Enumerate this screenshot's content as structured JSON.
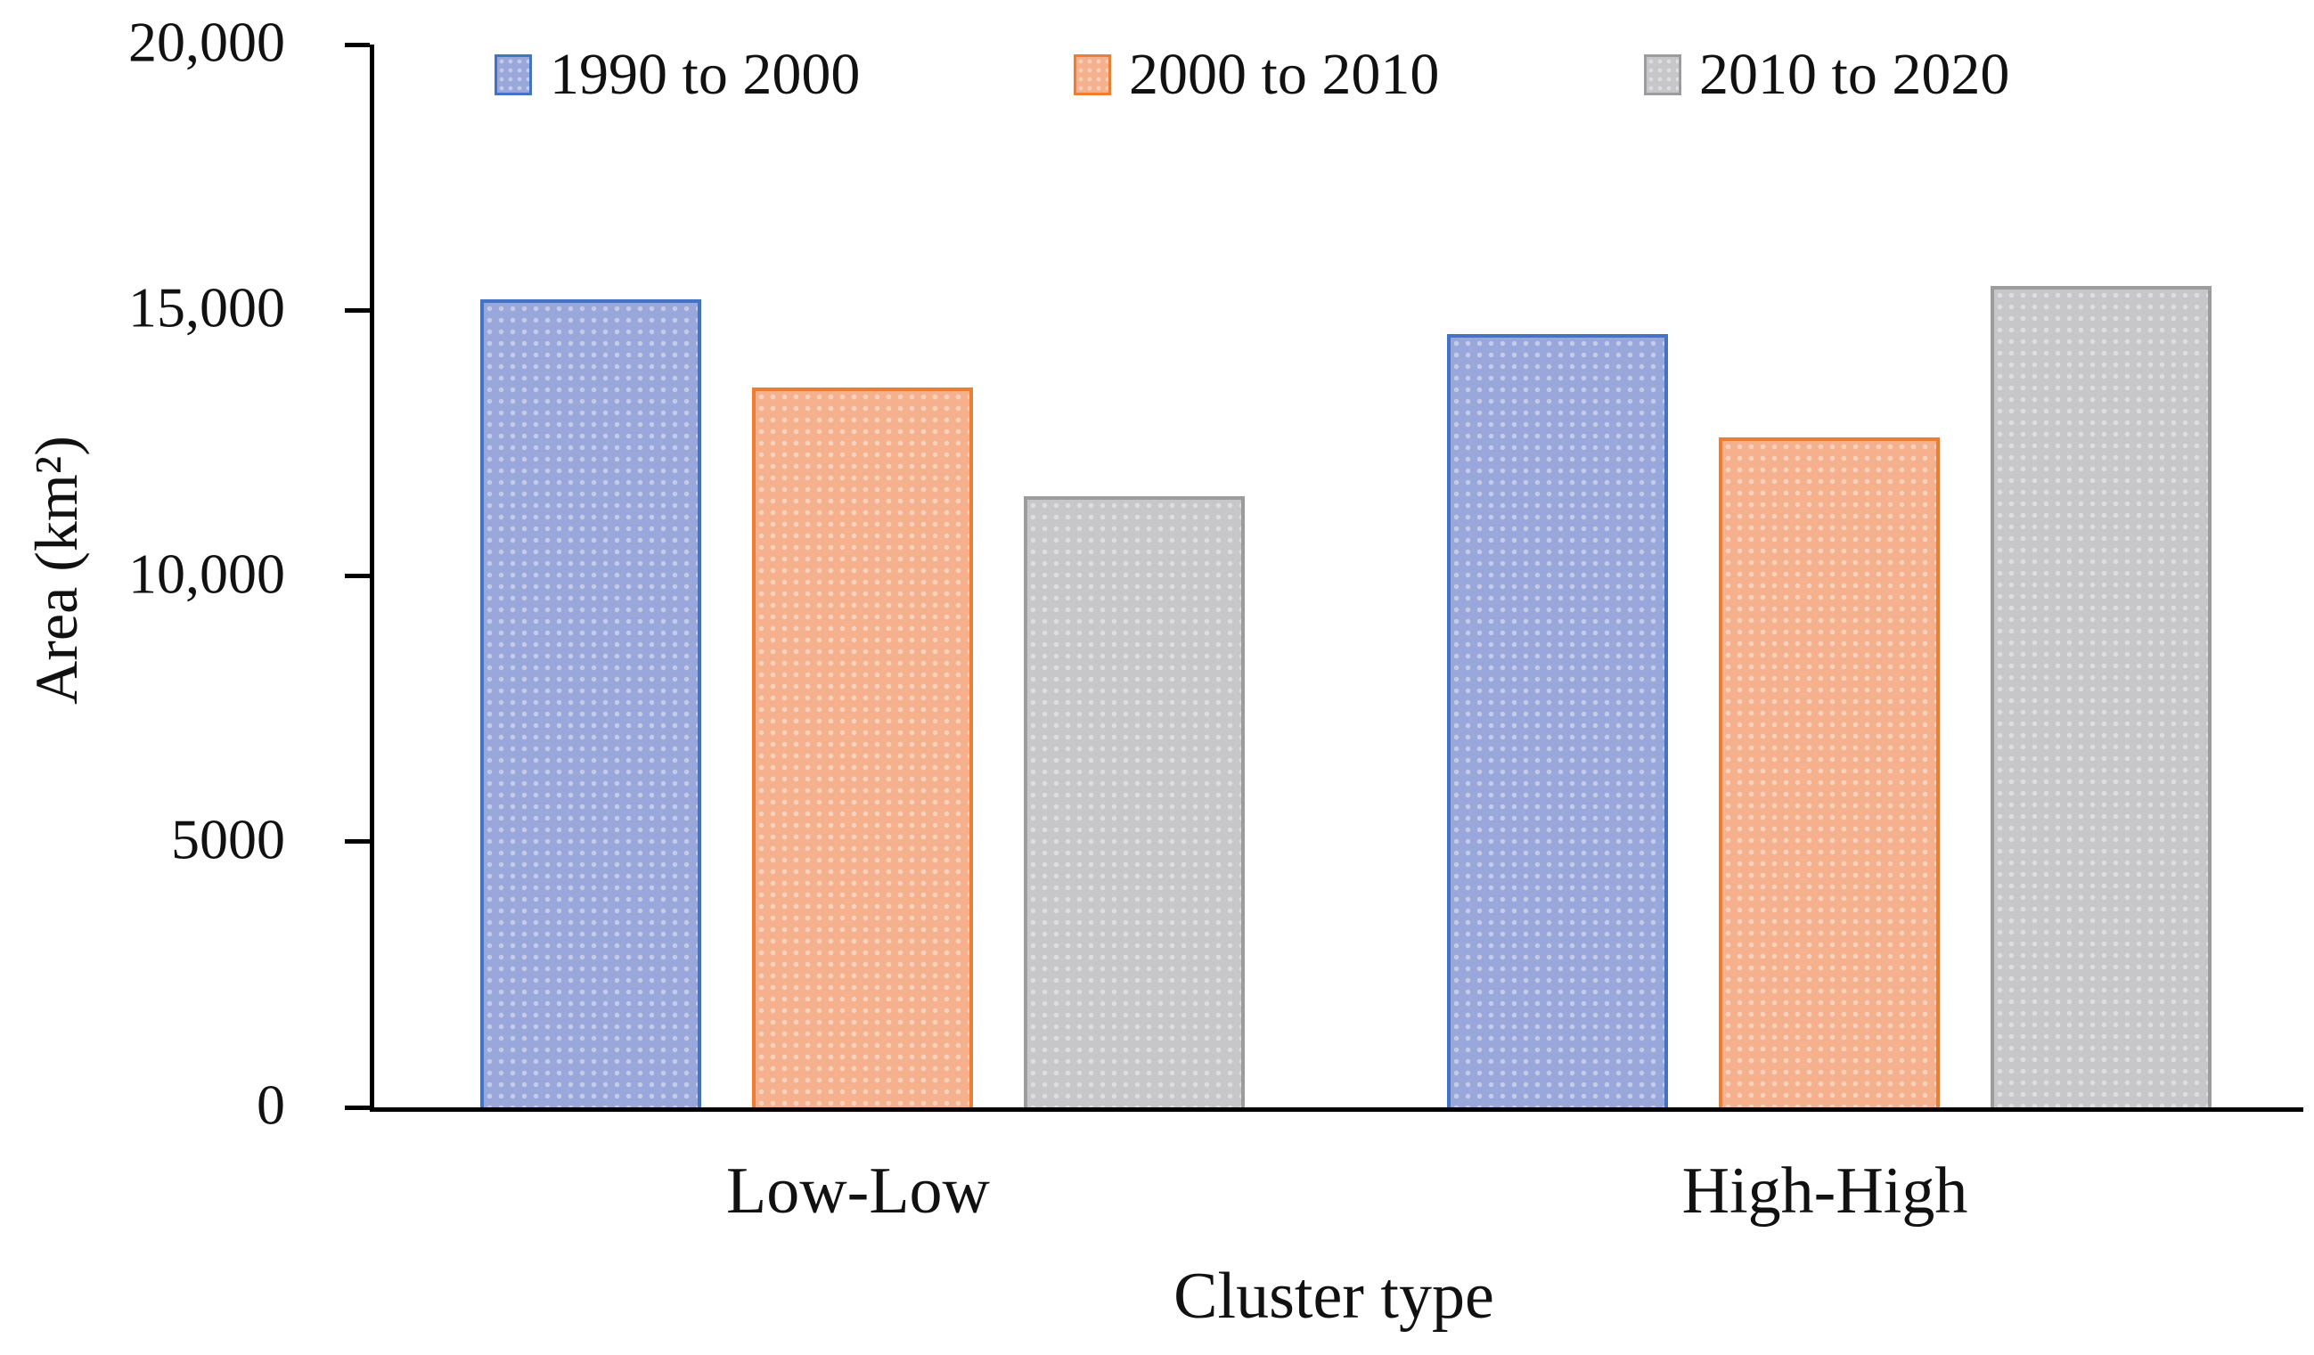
{
  "figure": {
    "background": "#ffffff",
    "text_color": "#111111",
    "axis_color": "#000000"
  },
  "chart_data": {
    "type": "bar",
    "title": "",
    "categories": [
      "Low-Low",
      "High-High"
    ],
    "series": [
      {
        "name": "1990 to 2000",
        "values": [
          15200,
          14550
        ],
        "fill": "#99A7DB",
        "border": "#4472C4"
      },
      {
        "name": "2000 to 2010",
        "values": [
          13550,
          12600
        ],
        "fill": "#F5B18D",
        "border": "#ED7D31"
      },
      {
        "name": "2010 to 2020",
        "values": [
          11500,
          15450
        ],
        "fill": "#C7C7C9",
        "border": "#9C9C9C"
      }
    ],
    "xlabel": "Cluster type",
    "ylabel": "Area  (km²)",
    "ylim": [
      0,
      20000
    ],
    "yticks": [
      {
        "value": 0,
        "label": "0"
      },
      {
        "value": 5000,
        "label": "5000"
      },
      {
        "value": 10000,
        "label": "10,000"
      },
      {
        "value": 15000,
        "label": "15,000"
      },
      {
        "value": 20000,
        "label": "20,000"
      }
    ],
    "grid": false,
    "legend_position": "top"
  }
}
